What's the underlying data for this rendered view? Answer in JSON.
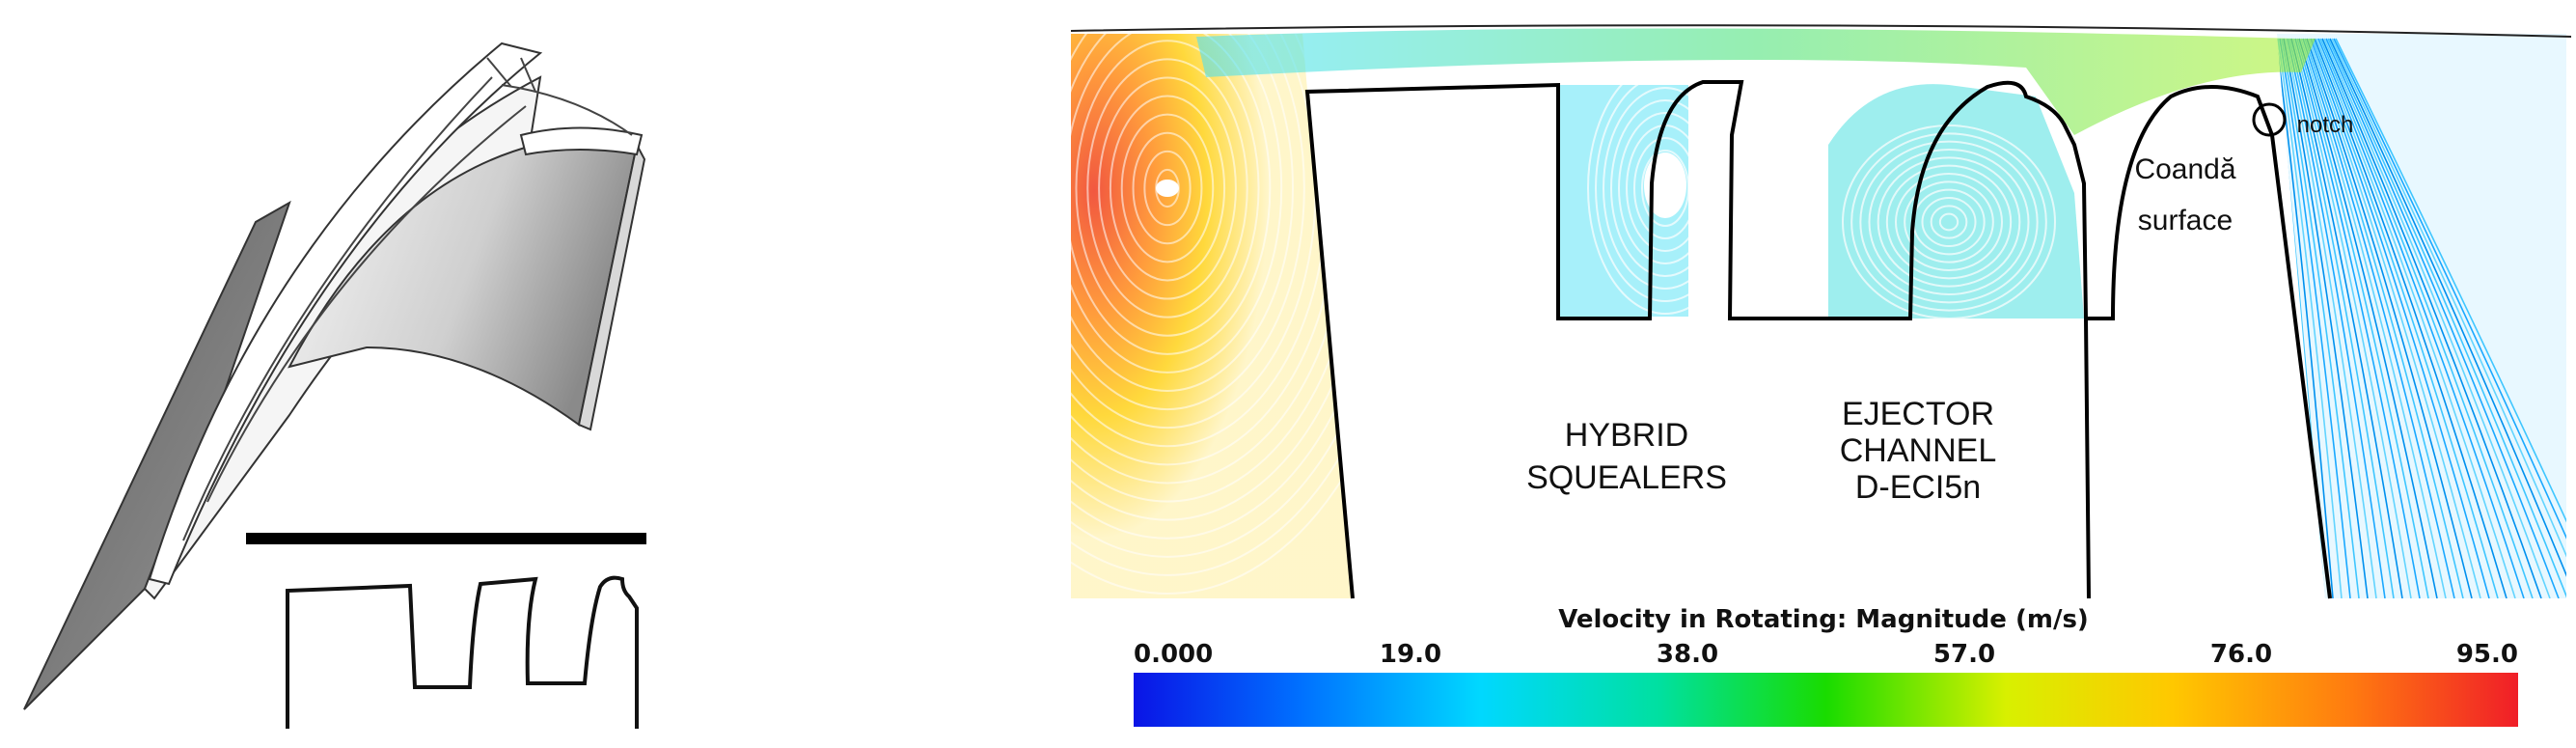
{
  "figure": {
    "labels": {
      "hybrid_squealers": [
        "HYBRID",
        "SQUEALERS"
      ],
      "ejector_channel": [
        "EJECTOR",
        "CHANNEL",
        "D-ECI5n"
      ],
      "coanda_surface": [
        "Coandă",
        "surface"
      ],
      "notch": "notch"
    },
    "colorbar": {
      "title": "Velocity in Rotating: Magnitude (m/s)",
      "ticks": [
        "0.000",
        "19.0",
        "38.0",
        "57.0",
        "76.0",
        "95.0"
      ],
      "min": 0,
      "max": 95,
      "colormap": [
        "#0a14e6",
        "#0070ff",
        "#00d8ff",
        "#00e080",
        "#19dc00",
        "#d8f000",
        "#ffc800",
        "#ff7a10",
        "#f01e28"
      ]
    }
  }
}
